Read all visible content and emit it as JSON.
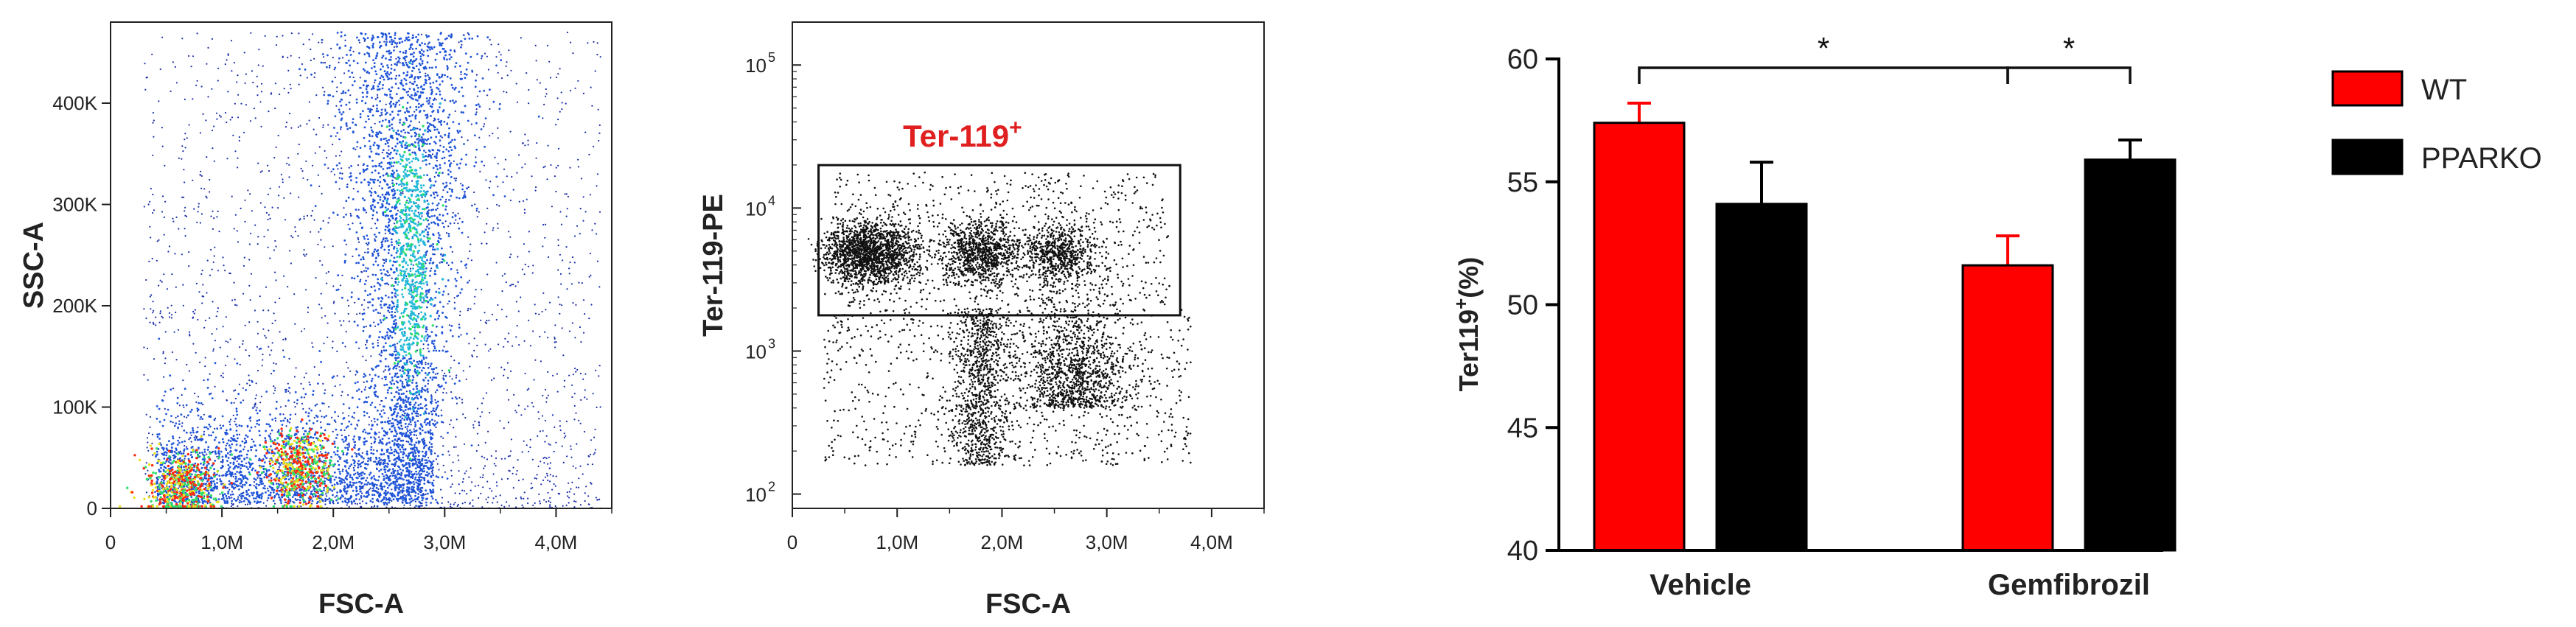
{
  "chart_data": [
    {
      "type": "scatter",
      "xlabel": "FSC-A",
      "ylabel": "SSC-A",
      "x_ticks": [
        "0",
        "1,0M",
        "2,0M",
        "3,0M",
        "4,0M"
      ],
      "y_ticks": [
        "0",
        "100K",
        "200K",
        "300K",
        "400K"
      ],
      "xlim": [
        0,
        4500000
      ],
      "ylim": [
        0,
        480000
      ],
      "density_hotspots": [
        {
          "x": 650000,
          "y": 20000,
          "level": "high"
        },
        {
          "x": 1700000,
          "y": 40000,
          "level": "high"
        },
        {
          "x": 2700000,
          "y": 250000,
          "level": "medium"
        }
      ]
    },
    {
      "type": "scatter",
      "xlabel": "FSC-A",
      "ylabel": "Ter-119-PE",
      "x_ticks": [
        "0",
        "1,0M",
        "2,0M",
        "3,0M",
        "4,0M"
      ],
      "y_ticks": [
        "10",
        "10",
        "10",
        "10"
      ],
      "y_tick_exponents": [
        "2",
        "3",
        "4",
        "5"
      ],
      "xlim": [
        0,
        4500000
      ],
      "ylim_log10": [
        1.9,
        5.3
      ],
      "gate": {
        "label": "Ter-119",
        "label_sup": "+",
        "x_range": [
          250000,
          3700000
        ],
        "y_log10_range": [
          3.25,
          4.3
        ]
      }
    },
    {
      "type": "bar",
      "categories": [
        "Vehicle",
        "Gemfibrozil"
      ],
      "series": [
        {
          "name": "WT",
          "color": "#ff0000",
          "values": [
            57.4,
            51.6
          ],
          "errors": [
            0.8,
            1.2
          ]
        },
        {
          "name": "PPARKO",
          "color": "#000000",
          "values": [
            54.1,
            55.9
          ],
          "errors": [
            1.7,
            0.8
          ]
        }
      ],
      "ylabel": "Ter119",
      "ylabel_sup": "+",
      "ylabel_suffix": "(%)",
      "ylim": [
        40,
        60
      ],
      "y_ticks": [
        "40",
        "45",
        "50",
        "55",
        "60"
      ],
      "significance": [
        {
          "between": [
            "Vehicle:WT",
            "Gemfibrozil:WT"
          ],
          "mark": "*"
        },
        {
          "between": [
            "Gemfibrozil:WT",
            "Gemfibrozil:PPARKO"
          ],
          "mark": "*"
        }
      ],
      "legend_position": "right"
    }
  ]
}
